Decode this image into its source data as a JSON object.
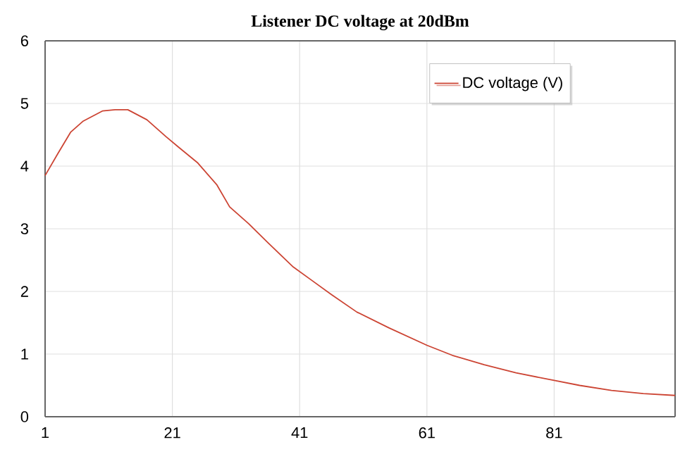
{
  "chart_data": {
    "type": "line",
    "title": "Listener DC voltage at 20dBm",
    "xlim": [
      1,
      100
    ],
    "xticks": [
      1,
      21,
      41,
      61,
      81
    ],
    "ylim": [
      0,
      6
    ],
    "yticks": [
      0,
      1,
      2,
      3,
      4,
      5,
      6
    ],
    "grid": true,
    "legend": "top right",
    "marker": "none",
    "line_style": "solid",
    "series": [
      {
        "name": "DC voltage (V)",
        "color": "#cc4433",
        "x": [
          1,
          3,
          5,
          7,
          10,
          12,
          14,
          17,
          20,
          22,
          25,
          28,
          30,
          33,
          36,
          40,
          43,
          46,
          50,
          55,
          61,
          65,
          70,
          75,
          81,
          85,
          90,
          95,
          100
        ],
        "values": [
          3.85,
          4.2,
          4.54,
          4.72,
          4.88,
          4.9,
          4.9,
          4.74,
          4.47,
          4.3,
          4.05,
          3.7,
          3.35,
          3.08,
          2.78,
          2.39,
          2.17,
          1.95,
          1.67,
          1.42,
          1.14,
          0.98,
          0.83,
          0.7,
          0.58,
          0.5,
          0.42,
          0.37,
          0.34
        ]
      }
    ]
  }
}
